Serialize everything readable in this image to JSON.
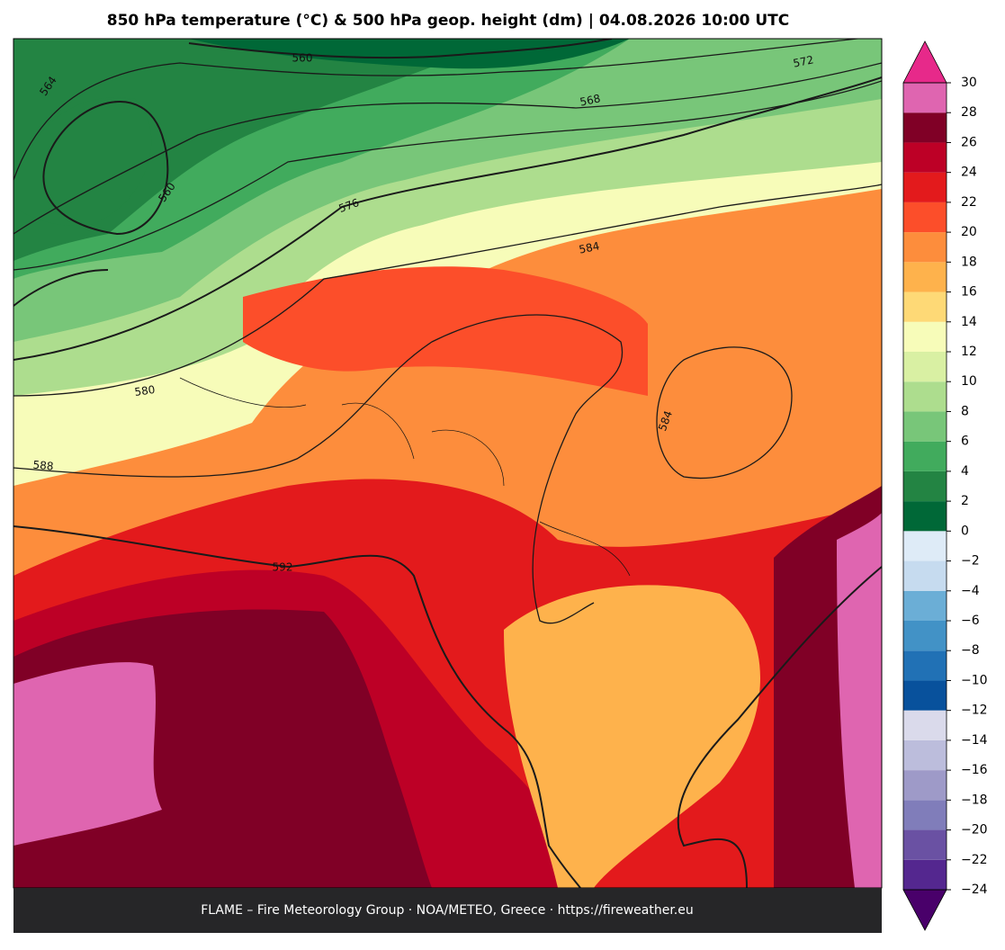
{
  "title": "850 hPa temperature (°C) & 500 hPa geop. height (dm)  |  04.08.2026 10:00 UTC",
  "colorbar": {
    "lim": [
      -24,
      30
    ],
    "ticks": [
      {
        "value": -24,
        "label": "−24"
      },
      {
        "value": -22,
        "label": "−22"
      },
      {
        "value": -20,
        "label": "−20"
      },
      {
        "value": -18,
        "label": "−18"
      },
      {
        "value": -16,
        "label": "−16"
      },
      {
        "value": -14,
        "label": "−14"
      },
      {
        "value": -12,
        "label": "−12"
      },
      {
        "value": -10,
        "label": "−10"
      },
      {
        "value": -8,
        "label": "−8"
      },
      {
        "value": -6,
        "label": "−6"
      },
      {
        "value": -4,
        "label": "−4"
      },
      {
        "value": -2,
        "label": "−2"
      },
      0,
      2,
      4,
      6,
      8,
      10,
      12,
      14,
      16,
      18,
      20,
      22,
      24,
      26,
      28,
      30
    ],
    "colors": [
      "#54278f",
      "#6a51a3",
      "#807dba",
      "#9e9ac8",
      "#bcbddc",
      "#dadaeb",
      "#08519c",
      "#2171b5",
      "#4292c6",
      "#6baed6",
      "#c6dbef",
      "#deebf7",
      "#006837",
      "#238443",
      "#41ab5d",
      "#78c679",
      "#addd8e",
      "#d9f0a3",
      "#f7fcb9",
      "#fed976",
      "#feb24c",
      "#fd8d3c",
      "#fc4e2a",
      "#e31a1c",
      "#bd0026",
      "#800026",
      "#df65b0"
    ],
    "under_color": "#49006a",
    "over_color": "#e7298a"
  },
  "contour_labels": [
    560,
    564,
    568,
    572,
    576,
    560,
    584,
    580,
    588,
    592,
    584
  ],
  "footer": "FLAME – Fire Meteorology Group · NOA/METEO, Greece · https://fireweather.eu"
}
